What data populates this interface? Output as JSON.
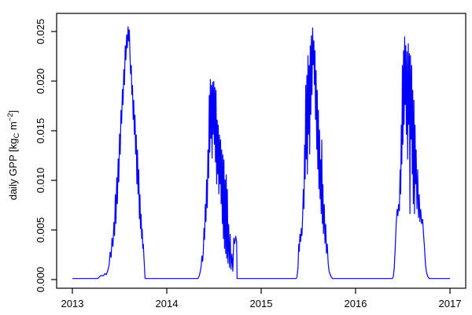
{
  "figure": {
    "background_color": "#ffffff",
    "line_color": "#0000ff",
    "axis_color": "#000000",
    "text_color": "#000000"
  },
  "chart_data": {
    "type": "line",
    "title": "",
    "xlabel": "",
    "ylabel": "daily GPP [kgC m−2]",
    "ylabel_parts": {
      "prefix": "daily GPP [kg",
      "sub": "C",
      "mid": " m",
      "sup": "−2",
      "suffix": "]"
    },
    "xlim": [
      2013,
      2017
    ],
    "ylim": [
      0,
      0.025
    ],
    "grid": false,
    "legend_position": "none",
    "xticks": [
      2013,
      2014,
      2015,
      2016,
      2017
    ],
    "xtick_labels": [
      "2013",
      "2014",
      "2015",
      "2016",
      "2017"
    ],
    "yticks": [
      0.0,
      0.005,
      0.01,
      0.015,
      0.02,
      0.025
    ],
    "ytick_labels": [
      "0.000",
      "0.005",
      "0.010",
      "0.015",
      "0.020",
      "0.025"
    ],
    "series": [
      {
        "name": "daily GPP",
        "color": "#0000ff",
        "points": [
          [
            2013.0,
            0.0001
          ],
          [
            2013.15,
            0.0001
          ],
          [
            2013.27,
            0.0001
          ],
          [
            2013.3,
            0.0004
          ],
          [
            2013.33,
            0.0004
          ],
          [
            2013.345,
            0.0006
          ],
          [
            2013.36,
            0.0005
          ],
          [
            2013.375,
            0.0009
          ],
          [
            2013.39,
            0.0015
          ],
          [
            2013.4,
            0.0028
          ],
          [
            2013.41,
            0.0022
          ],
          [
            2013.42,
            0.0042
          ],
          [
            2013.43,
            0.0033
          ],
          [
            2013.44,
            0.0058
          ],
          [
            2013.447,
            0.0044
          ],
          [
            2013.455,
            0.0086
          ],
          [
            2013.462,
            0.0056
          ],
          [
            2013.47,
            0.0103
          ],
          [
            2013.477,
            0.0076
          ],
          [
            2013.485,
            0.0122
          ],
          [
            2013.492,
            0.0098
          ],
          [
            2013.5,
            0.0147
          ],
          [
            2013.507,
            0.0126
          ],
          [
            2013.515,
            0.0171
          ],
          [
            2013.522,
            0.0157
          ],
          [
            2013.53,
            0.0192
          ],
          [
            2013.537,
            0.0176
          ],
          [
            2013.545,
            0.0212
          ],
          [
            2013.552,
            0.0196
          ],
          [
            2013.56,
            0.0236
          ],
          [
            2013.567,
            0.0221
          ],
          [
            2013.575,
            0.0247
          ],
          [
            2013.582,
            0.0233
          ],
          [
            2013.59,
            0.0255
          ],
          [
            2013.597,
            0.024
          ],
          [
            2013.603,
            0.0252
          ],
          [
            2013.61,
            0.0227
          ],
          [
            2013.617,
            0.0207
          ],
          [
            2013.624,
            0.0216
          ],
          [
            2013.63,
            0.0186
          ],
          [
            2013.637,
            0.0196
          ],
          [
            2013.644,
            0.0161
          ],
          [
            2013.65,
            0.0181
          ],
          [
            2013.657,
            0.0146
          ],
          [
            2013.663,
            0.0166
          ],
          [
            2013.67,
            0.0126
          ],
          [
            2013.677,
            0.0146
          ],
          [
            2013.683,
            0.0096
          ],
          [
            2013.69,
            0.0131
          ],
          [
            2013.696,
            0.0086
          ],
          [
            2013.703,
            0.0111
          ],
          [
            2013.71,
            0.0061
          ],
          [
            2013.716,
            0.0086
          ],
          [
            2013.722,
            0.0051
          ],
          [
            2013.728,
            0.0066
          ],
          [
            2013.734,
            0.0041
          ],
          [
            2013.74,
            0.0051
          ],
          [
            2013.746,
            0.0031
          ],
          [
            2013.752,
            0.0036
          ],
          [
            2013.758,
            0.0022
          ],
          [
            2013.764,
            0.0012
          ],
          [
            2013.77,
            0.0001
          ],
          [
            2013.9,
            0.0001
          ],
          [
            2014.1,
            0.0001
          ],
          [
            2014.33,
            0.0001
          ],
          [
            2014.345,
            0.0004
          ],
          [
            2014.355,
            0.0008
          ],
          [
            2014.365,
            0.0014
          ],
          [
            2014.372,
            0.0024
          ],
          [
            2014.38,
            0.0018
          ],
          [
            2014.388,
            0.003
          ],
          [
            2014.394,
            0.0052
          ],
          [
            2014.4,
            0.004
          ],
          [
            2014.408,
            0.0076
          ],
          [
            2014.415,
            0.0058
          ],
          [
            2014.422,
            0.0101
          ],
          [
            2014.429,
            0.0072
          ],
          [
            2014.436,
            0.0131
          ],
          [
            2014.443,
            0.0102
          ],
          [
            2014.45,
            0.0186
          ],
          [
            2014.456,
            0.0128
          ],
          [
            2014.462,
            0.0202
          ],
          [
            2014.468,
            0.0142
          ],
          [
            2014.474,
            0.0196
          ],
          [
            2014.48,
            0.0122
          ],
          [
            2014.486,
            0.0199
          ],
          [
            2014.492,
            0.0146
          ],
          [
            2014.498,
            0.02
          ],
          [
            2014.504,
            0.0136
          ],
          [
            2014.51,
            0.0194
          ],
          [
            2014.516,
            0.0118
          ],
          [
            2014.522,
            0.0191
          ],
          [
            2014.528,
            0.0096
          ],
          [
            2014.534,
            0.0161
          ],
          [
            2014.54,
            0.0106
          ],
          [
            2014.546,
            0.0156
          ],
          [
            2014.552,
            0.0086
          ],
          [
            2014.558,
            0.0146
          ],
          [
            2014.564,
            0.0096
          ],
          [
            2014.57,
            0.0141
          ],
          [
            2014.576,
            0.0076
          ],
          [
            2014.582,
            0.0131
          ],
          [
            2014.588,
            0.0056
          ],
          [
            2014.594,
            0.0126
          ],
          [
            2014.6,
            0.0041
          ],
          [
            2014.606,
            0.0121
          ],
          [
            2014.612,
            0.0031
          ],
          [
            2014.618,
            0.0101
          ],
          [
            2014.624,
            0.0026
          ],
          [
            2014.63,
            0.0106
          ],
          [
            2014.636,
            0.0021
          ],
          [
            2014.642,
            0.0091
          ],
          [
            2014.648,
            0.0016
          ],
          [
            2014.656,
            0.0056
          ],
          [
            2014.664,
            0.0012
          ],
          [
            2014.672,
            0.0046
          ],
          [
            2014.68,
            0.001
          ],
          [
            2014.69,
            0.0026
          ],
          [
            2014.7,
            0.0008
          ],
          [
            2014.71,
            0.0042
          ],
          [
            2014.72,
            0.0036
          ],
          [
            2014.73,
            0.0044
          ],
          [
            2014.74,
            0.0038
          ],
          [
            2014.745,
            0.0001
          ],
          [
            2014.9,
            0.0001
          ],
          [
            2015.1,
            0.0001
          ],
          [
            2015.37,
            0.0001
          ],
          [
            2015.38,
            0.0003
          ],
          [
            2015.39,
            0.0012
          ],
          [
            2015.398,
            0.0036
          ],
          [
            2015.404,
            0.0028
          ],
          [
            2015.41,
            0.0046
          ],
          [
            2015.418,
            0.0038
          ],
          [
            2015.425,
            0.0052
          ],
          [
            2015.432,
            0.0044
          ],
          [
            2015.44,
            0.0066
          ],
          [
            2015.447,
            0.0091
          ],
          [
            2015.453,
            0.0071
          ],
          [
            2015.46,
            0.0136
          ],
          [
            2015.466,
            0.0101
          ],
          [
            2015.472,
            0.0196
          ],
          [
            2015.478,
            0.0121
          ],
          [
            2015.484,
            0.0206
          ],
          [
            2015.49,
            0.0106
          ],
          [
            2015.496,
            0.0226
          ],
          [
            2015.502,
            0.0146
          ],
          [
            2015.508,
            0.0216
          ],
          [
            2015.514,
            0.0126
          ],
          [
            2015.52,
            0.0236
          ],
          [
            2015.526,
            0.0166
          ],
          [
            2015.532,
            0.0246
          ],
          [
            2015.538,
            0.0186
          ],
          [
            2015.545,
            0.0254
          ],
          [
            2015.552,
            0.0216
          ],
          [
            2015.558,
            0.0241
          ],
          [
            2015.564,
            0.0196
          ],
          [
            2015.57,
            0.0231
          ],
          [
            2015.576,
            0.0161
          ],
          [
            2015.582,
            0.0211
          ],
          [
            2015.588,
            0.0131
          ],
          [
            2015.594,
            0.0191
          ],
          [
            2015.6,
            0.0111
          ],
          [
            2015.606,
            0.0171
          ],
          [
            2015.612,
            0.0091
          ],
          [
            2015.618,
            0.0151
          ],
          [
            2015.624,
            0.0081
          ],
          [
            2015.63,
            0.0121
          ],
          [
            2015.636,
            0.0066
          ],
          [
            2015.642,
            0.0141
          ],
          [
            2015.648,
            0.0056
          ],
          [
            2015.654,
            0.0096
          ],
          [
            2015.66,
            0.0046
          ],
          [
            2015.668,
            0.0076
          ],
          [
            2015.676,
            0.0036
          ],
          [
            2015.684,
            0.0056
          ],
          [
            2015.692,
            0.0026
          ],
          [
            2015.7,
            0.0036
          ],
          [
            2015.71,
            0.0016
          ],
          [
            2015.72,
            0.0008
          ],
          [
            2015.74,
            0.0003
          ],
          [
            2015.755,
            0.0001
          ],
          [
            2015.9,
            0.0001
          ],
          [
            2016.15,
            0.0001
          ],
          [
            2016.39,
            0.0001
          ],
          [
            2016.4,
            0.0003
          ],
          [
            2016.41,
            0.0012
          ],
          [
            2016.42,
            0.0032
          ],
          [
            2016.43,
            0.0056
          ],
          [
            2016.44,
            0.0071
          ],
          [
            2016.448,
            0.0064
          ],
          [
            2016.456,
            0.0076
          ],
          [
            2016.464,
            0.0069
          ],
          [
            2016.472,
            0.0111
          ],
          [
            2016.478,
            0.0086
          ],
          [
            2016.484,
            0.0156
          ],
          [
            2016.49,
            0.0116
          ],
          [
            2016.496,
            0.0216
          ],
          [
            2016.502,
            0.0136
          ],
          [
            2016.508,
            0.0231
          ],
          [
            2016.514,
            0.0156
          ],
          [
            2016.52,
            0.0245
          ],
          [
            2016.526,
            0.0176
          ],
          [
            2016.532,
            0.0236
          ],
          [
            2016.538,
            0.0146
          ],
          [
            2016.545,
            0.023
          ],
          [
            2016.552,
            0.0121
          ],
          [
            2016.558,
            0.0238
          ],
          [
            2016.564,
            0.0156
          ],
          [
            2016.57,
            0.0228
          ],
          [
            2016.576,
            0.0066
          ],
          [
            2016.582,
            0.0226
          ],
          [
            2016.588,
            0.0141
          ],
          [
            2016.594,
            0.0216
          ],
          [
            2016.6,
            0.0106
          ],
          [
            2016.606,
            0.0191
          ],
          [
            2016.612,
            0.0076
          ],
          [
            2016.618,
            0.0181
          ],
          [
            2016.624,
            0.0066
          ],
          [
            2016.63,
            0.0156
          ],
          [
            2016.636,
            0.0096
          ],
          [
            2016.642,
            0.0131
          ],
          [
            2016.65,
            0.0071
          ],
          [
            2016.658,
            0.0111
          ],
          [
            2016.666,
            0.0062
          ],
          [
            2016.674,
            0.0086
          ],
          [
            2016.682,
            0.0058
          ],
          [
            2016.69,
            0.0071
          ],
          [
            2016.7,
            0.0056
          ],
          [
            2016.71,
            0.0061
          ],
          [
            2016.72,
            0.0046
          ],
          [
            2016.73,
            0.0032
          ],
          [
            2016.74,
            0.0016
          ],
          [
            2016.75,
            0.0008
          ],
          [
            2016.765,
            0.0003
          ],
          [
            2016.78,
            0.0001
          ],
          [
            2016.9,
            0.0001
          ],
          [
            2017.0,
            0.0001
          ]
        ]
      }
    ]
  }
}
